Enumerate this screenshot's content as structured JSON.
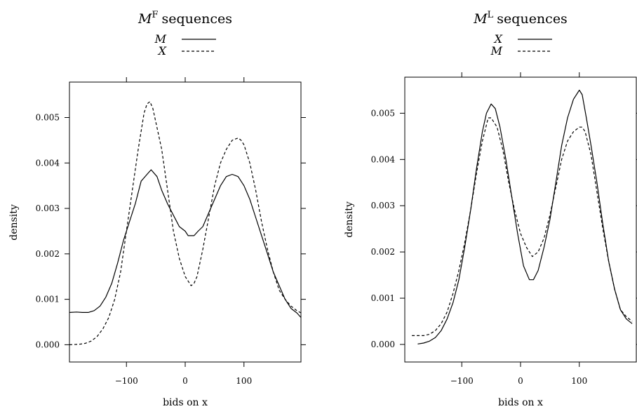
{
  "chart_data": [
    {
      "type": "line",
      "title": "sequences",
      "title_symbol": "M",
      "title_superscript": "F",
      "xlabel": "bids on x",
      "ylabel": "density",
      "xlim": [
        -197,
        197
      ],
      "ylim": [
        -0.00038,
        0.00578
      ],
      "x_ticks": [
        -100,
        0,
        100
      ],
      "x_tick_labels": [
        "−100",
        "0",
        "100"
      ],
      "y_ticks": [
        0,
        0.001,
        0.002,
        0.003,
        0.004,
        0.005
      ],
      "y_tick_labels": [
        "0.000",
        "0.001",
        "0.002",
        "0.003",
        "0.004",
        "0.005"
      ],
      "legend_position": "top",
      "series": [
        {
          "name": "M",
          "dash": "solid",
          "x": [
            -197,
            -185,
            -175,
            -165,
            -155,
            -145,
            -135,
            -125,
            -115,
            -105,
            -95,
            -85,
            -75,
            -65,
            -58,
            -48,
            -40,
            -30,
            -20,
            -10,
            0,
            5,
            15,
            22,
            30,
            40,
            50,
            60,
            70,
            80,
            90,
            100,
            110,
            120,
            130,
            140,
            150,
            160,
            170,
            180,
            190,
            197
          ],
          "y": [
            0.00071,
            0.00072,
            0.00071,
            0.00071,
            0.00075,
            0.00085,
            0.00105,
            0.00135,
            0.0018,
            0.0023,
            0.0027,
            0.0031,
            0.0036,
            0.00375,
            0.00385,
            0.0037,
            0.0034,
            0.0031,
            0.00285,
            0.0026,
            0.0025,
            0.0024,
            0.0024,
            0.0025,
            0.0026,
            0.0029,
            0.0032,
            0.0035,
            0.0037,
            0.00375,
            0.0037,
            0.0035,
            0.0032,
            0.0028,
            0.0024,
            0.002,
            0.0016,
            0.0013,
            0.001,
            0.0008,
            0.0007,
            0.0006
          ]
        },
        {
          "name": "X",
          "dash": "dashed",
          "x": [
            -197,
            -180,
            -170,
            -160,
            -150,
            -140,
            -130,
            -120,
            -110,
            -100,
            -90,
            -80,
            -70,
            -65,
            -60,
            -55,
            -50,
            -45,
            -40,
            -30,
            -20,
            -10,
            0,
            5,
            10,
            15,
            20,
            30,
            40,
            50,
            60,
            70,
            80,
            90,
            95,
            100,
            110,
            120,
            130,
            140,
            150,
            160,
            170,
            180,
            190,
            197
          ],
          "y": [
            0.0,
            1e-05,
            3e-05,
            8e-05,
            0.00018,
            0.00035,
            0.0006,
            0.001,
            0.0016,
            0.0025,
            0.0034,
            0.0043,
            0.0051,
            0.0053,
            0.00535,
            0.0052,
            0.0049,
            0.0046,
            0.0043,
            0.0034,
            0.0025,
            0.0019,
            0.0015,
            0.0014,
            0.0013,
            0.00135,
            0.0015,
            0.0021,
            0.0028,
            0.0035,
            0.004,
            0.0043,
            0.0045,
            0.00455,
            0.0045,
            0.0044,
            0.004,
            0.0034,
            0.0027,
            0.0021,
            0.0016,
            0.0012,
            0.001,
            0.00085,
            0.00075,
            0.0007
          ]
        }
      ]
    },
    {
      "type": "line",
      "title": "sequences",
      "title_symbol": "M",
      "title_superscript": "L",
      "xlabel": "bids on x",
      "ylabel": "density",
      "xlim": [
        -197,
        197
      ],
      "ylim": [
        -0.00038,
        0.00578
      ],
      "x_ticks": [
        -100,
        0,
        100
      ],
      "x_tick_labels": [
        "−100",
        "0",
        "100"
      ],
      "y_ticks": [
        0,
        0.001,
        0.002,
        0.003,
        0.004,
        0.005
      ],
      "y_tick_labels": [
        "0.000",
        "0.001",
        "0.002",
        "0.003",
        "0.004",
        "0.005"
      ],
      "legend_position": "top",
      "series": [
        {
          "name": "X",
          "dash": "solid",
          "x": [
            -175,
            -165,
            -155,
            -145,
            -135,
            -125,
            -115,
            -105,
            -95,
            -85,
            -75,
            -65,
            -58,
            -50,
            -43,
            -35,
            -25,
            -15,
            -5,
            5,
            15,
            22,
            30,
            40,
            50,
            60,
            70,
            80,
            90,
            100,
            105,
            112,
            120,
            130,
            140,
            150,
            160,
            170,
            180,
            190
          ],
          "y": [
            1e-05,
            3e-05,
            7e-05,
            0.00015,
            0.0003,
            0.00055,
            0.0009,
            0.0014,
            0.0021,
            0.0029,
            0.0038,
            0.0046,
            0.005,
            0.0052,
            0.0051,
            0.0047,
            0.004,
            0.0032,
            0.0024,
            0.0017,
            0.0014,
            0.0014,
            0.0016,
            0.0021,
            0.0027,
            0.0035,
            0.0043,
            0.0049,
            0.0053,
            0.0055,
            0.0054,
            0.0049,
            0.0043,
            0.0035,
            0.0026,
            0.0018,
            0.0012,
            0.00075,
            0.00055,
            0.00045
          ]
        },
        {
          "name": "M",
          "dash": "dashed",
          "x": [
            -185,
            -175,
            -165,
            -155,
            -145,
            -135,
            -125,
            -115,
            -105,
            -95,
            -85,
            -75,
            -65,
            -55,
            -50,
            -40,
            -30,
            -20,
            -10,
            0,
            10,
            20,
            30,
            40,
            50,
            60,
            70,
            80,
            90,
            100,
            105,
            110,
            120,
            130,
            140,
            150,
            160,
            170,
            180,
            190
          ],
          "y": [
            0.00019,
            0.00019,
            0.00019,
            0.00022,
            0.0003,
            0.00045,
            0.0007,
            0.0011,
            0.0016,
            0.0022,
            0.0029,
            0.0037,
            0.0044,
            0.0049,
            0.0049,
            0.0047,
            0.0042,
            0.0035,
            0.0029,
            0.0024,
            0.0021,
            0.0019,
            0.002,
            0.0023,
            0.0028,
            0.0034,
            0.004,
            0.0044,
            0.0046,
            0.0047,
            0.0047,
            0.0046,
            0.0041,
            0.0033,
            0.0025,
            0.0018,
            0.0012,
            0.00075,
            0.0006,
            0.0005
          ]
        }
      ]
    }
  ]
}
